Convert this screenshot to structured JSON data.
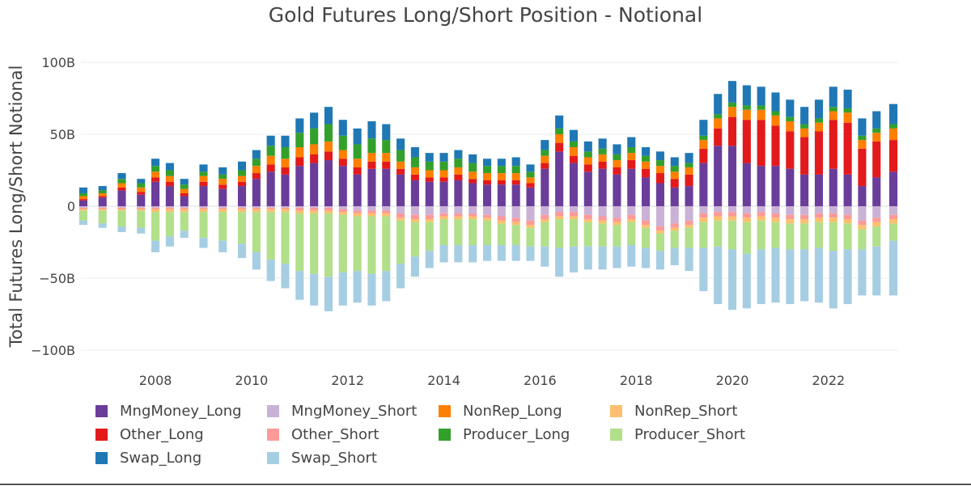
{
  "chart_data": {
    "type": "bar",
    "title": "Gold Futures Long/Short Position - Notional",
    "ylabel": "Total Futures Long/Short Notional",
    "xlabel": "",
    "ylim": [
      -105,
      105
    ],
    "yticks": [
      {
        "value": 100,
        "label": "100B"
      },
      {
        "value": 50,
        "label": "50B"
      },
      {
        "value": 0,
        "label": "0"
      },
      {
        "value": -50,
        "label": "−50B"
      },
      {
        "value": -100,
        "label": "−100B"
      }
    ],
    "xlim": [
      2006.45,
      2023.45
    ],
    "xticks": [
      {
        "value": 2008,
        "label": "2008"
      },
      {
        "value": 2010,
        "label": "2010"
      },
      {
        "value": 2012,
        "label": "2012"
      },
      {
        "value": 2014,
        "label": "2014"
      },
      {
        "value": 2016,
        "label": "2016"
      },
      {
        "value": 2018,
        "label": "2018"
      },
      {
        "value": 2020,
        "label": "2020"
      },
      {
        "value": 2022,
        "label": "2022"
      }
    ],
    "barmode": "relative",
    "grid": true,
    "legend_position": "bottom",
    "x": [
      2006.5,
      2006.9,
      2007.3,
      2007.7,
      2008.0,
      2008.3,
      2008.6,
      2009.0,
      2009.4,
      2009.8,
      2010.1,
      2010.4,
      2010.7,
      2011.0,
      2011.3,
      2011.6,
      2011.9,
      2012.2,
      2012.5,
      2012.8,
      2013.1,
      2013.4,
      2013.7,
      2014.0,
      2014.3,
      2014.6,
      2014.9,
      2015.2,
      2015.5,
      2015.8,
      2016.1,
      2016.4,
      2016.7,
      2017.0,
      2017.3,
      2017.6,
      2017.9,
      2018.2,
      2018.5,
      2018.8,
      2019.1,
      2019.4,
      2019.7,
      2020.0,
      2020.3,
      2020.6,
      2020.9,
      2021.2,
      2021.5,
      2021.8,
      2022.1,
      2022.4,
      2022.7,
      2023.0,
      2023.35
    ],
    "series": [
      {
        "name": "MngMoney_Long",
        "color": "#6a3d9a",
        "values": [
          4,
          6,
          11,
          8,
          17,
          14,
          7,
          14,
          12,
          14,
          19,
          24,
          22,
          28,
          30,
          32,
          28,
          22,
          26,
          26,
          22,
          18,
          17,
          17,
          18,
          16,
          15,
          15,
          15,
          13,
          26,
          38,
          30,
          24,
          26,
          22,
          26,
          20,
          16,
          13,
          14,
          30,
          42,
          42,
          30,
          28,
          28,
          26,
          22,
          22,
          26,
          22,
          14,
          20,
          24
        ]
      },
      {
        "name": "Other_Long",
        "color": "#e31a1c",
        "values": [
          1,
          1,
          2,
          2,
          3,
          3,
          2,
          3,
          3,
          3,
          4,
          5,
          5,
          6,
          6,
          6,
          5,
          5,
          5,
          5,
          4,
          4,
          3,
          3,
          4,
          3,
          3,
          3,
          3,
          3,
          4,
          6,
          5,
          5,
          5,
          5,
          6,
          6,
          7,
          6,
          8,
          10,
          12,
          20,
          30,
          32,
          28,
          26,
          26,
          30,
          34,
          36,
          26,
          25,
          22
        ]
      },
      {
        "name": "NonRep_Long",
        "color": "#ff7f00",
        "values": [
          2,
          2,
          3,
          3,
          4,
          4,
          3,
          4,
          4,
          4,
          5,
          6,
          6,
          7,
          7,
          7,
          6,
          6,
          6,
          6,
          5,
          5,
          5,
          5,
          5,
          5,
          5,
          5,
          5,
          4,
          5,
          6,
          6,
          5,
          5,
          5,
          5,
          5,
          5,
          5,
          5,
          6,
          7,
          7,
          7,
          7,
          7,
          7,
          6,
          6,
          6,
          7,
          6,
          6,
          8
        ]
      },
      {
        "name": "Producer_Long",
        "color": "#33a02c",
        "values": [
          2,
          2,
          3,
          3,
          4,
          4,
          3,
          3,
          3,
          4,
          5,
          7,
          8,
          10,
          11,
          12,
          10,
          10,
          10,
          9,
          8,
          7,
          6,
          6,
          6,
          6,
          5,
          5,
          5,
          4,
          4,
          4,
          4,
          4,
          4,
          4,
          4,
          4,
          4,
          4,
          3,
          3,
          3,
          3,
          3,
          3,
          3,
          3,
          3,
          3,
          3,
          3,
          3,
          3,
          3
        ]
      },
      {
        "name": "Swap_Long",
        "color": "#1f78b4",
        "values": [
          4,
          3,
          4,
          3,
          5,
          5,
          4,
          5,
          5,
          6,
          6,
          7,
          8,
          10,
          11,
          12,
          11,
          11,
          12,
          11,
          8,
          7,
          6,
          6,
          6,
          6,
          5,
          5,
          6,
          5,
          7,
          9,
          8,
          7,
          7,
          7,
          7,
          6,
          6,
          6,
          7,
          11,
          14,
          15,
          14,
          13,
          13,
          12,
          12,
          13,
          14,
          13,
          12,
          12,
          14
        ]
      },
      {
        "name": "MngMoney_Short",
        "color": "#cab2d6",
        "values": [
          -1,
          -1,
          -1,
          -1,
          -1,
          -1,
          -1,
          -1,
          -1,
          -1,
          -1,
          -1,
          -1,
          -1,
          -1,
          -1,
          -2,
          -3,
          -3,
          -3,
          -5,
          -6,
          -6,
          -5,
          -5,
          -5,
          -6,
          -7,
          -8,
          -10,
          -6,
          -4,
          -4,
          -6,
          -7,
          -8,
          -6,
          -10,
          -14,
          -12,
          -10,
          -5,
          -4,
          -4,
          -5,
          -4,
          -5,
          -6,
          -6,
          -5,
          -5,
          -6,
          -10,
          -8,
          -6
        ]
      },
      {
        "name": "Other_Short",
        "color": "#fb9a99",
        "values": [
          -1,
          -1,
          -1,
          -1,
          -1,
          -1,
          -1,
          -1,
          -1,
          -1,
          -1,
          -1,
          -1,
          -2,
          -2,
          -2,
          -2,
          -2,
          -2,
          -2,
          -3,
          -3,
          -3,
          -2,
          -2,
          -2,
          -2,
          -3,
          -3,
          -3,
          -3,
          -3,
          -3,
          -3,
          -3,
          -3,
          -3,
          -3,
          -3,
          -3,
          -3,
          -3,
          -3,
          -3,
          -3,
          -3,
          -3,
          -3,
          -3,
          -3,
          -3,
          -3,
          -3,
          -3,
          -3
        ]
      },
      {
        "name": "NonRep_Short",
        "color": "#fdbf6f",
        "values": [
          -1,
          -1,
          -1,
          -1,
          -2,
          -2,
          -2,
          -2,
          -2,
          -2,
          -2,
          -2,
          -2,
          -2,
          -2,
          -2,
          -2,
          -2,
          -2,
          -2,
          -2,
          -2,
          -2,
          -2,
          -2,
          -2,
          -2,
          -2,
          -2,
          -2,
          -2,
          -2,
          -2,
          -2,
          -2,
          -2,
          -2,
          -2,
          -2,
          -2,
          -2,
          -3,
          -3,
          -3,
          -3,
          -3,
          -3,
          -3,
          -3,
          -3,
          -3,
          -3,
          -3,
          -3,
          -3
        ]
      },
      {
        "name": "Producer_Short",
        "color": "#b2df8a",
        "values": [
          -7,
          -9,
          -11,
          -12,
          -20,
          -17,
          -13,
          -18,
          -20,
          -22,
          -28,
          -33,
          -36,
          -40,
          -42,
          -44,
          -40,
          -38,
          -40,
          -38,
          -30,
          -24,
          -20,
          -18,
          -18,
          -18,
          -17,
          -15,
          -14,
          -13,
          -17,
          -20,
          -19,
          -17,
          -16,
          -15,
          -16,
          -14,
          -12,
          -12,
          -14,
          -18,
          -18,
          -20,
          -22,
          -20,
          -18,
          -18,
          -18,
          -18,
          -20,
          -18,
          -14,
          -14,
          -12
        ]
      },
      {
        "name": "Swap_Short",
        "color": "#a6cee3",
        "values": [
          -3,
          -3,
          -4,
          -4,
          -8,
          -7,
          -5,
          -7,
          -8,
          -10,
          -12,
          -15,
          -17,
          -20,
          -22,
          -24,
          -23,
          -22,
          -22,
          -21,
          -17,
          -14,
          -12,
          -12,
          -12,
          -12,
          -11,
          -11,
          -11,
          -10,
          -14,
          -20,
          -18,
          -16,
          -16,
          -15,
          -15,
          -14,
          -13,
          -12,
          -16,
          -30,
          -40,
          -42,
          -38,
          -38,
          -38,
          -38,
          -36,
          -38,
          -40,
          -38,
          -32,
          -34,
          -38
        ]
      }
    ]
  }
}
